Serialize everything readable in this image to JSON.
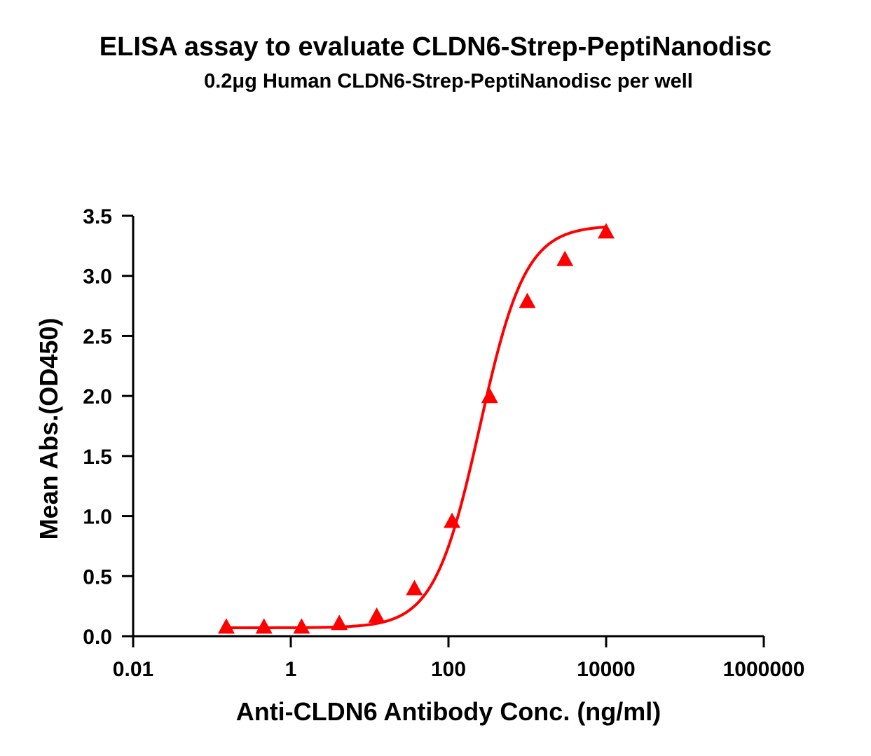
{
  "chart_data": {
    "type": "scatter",
    "title": "ELISA assay to evaluate CLDN6-Strep-PeptiNanodisc",
    "subtitle": "0.2μg Human CLDN6-Strep-PeptiNanodisc per well",
    "xlabel": "Anti-CLDN6 Antibody Conc. (ng/ml)",
    "ylabel": "Mean Abs.(OD450)",
    "x_scale": "log",
    "xlim": [
      0.01,
      1000000
    ],
    "ylim": [
      0,
      3.5
    ],
    "x_ticks": [
      0.01,
      1,
      100,
      10000,
      1000000
    ],
    "x_tick_labels": [
      "0.01",
      "1",
      "100",
      "10000",
      "1000000"
    ],
    "y_ticks": [
      0.0,
      0.5,
      1.0,
      1.5,
      2.0,
      2.5,
      3.0,
      3.5
    ],
    "y_tick_labels": [
      "0.0",
      "0.5",
      "1.0",
      "1.5",
      "2.0",
      "2.5",
      "3.0",
      "3.5"
    ],
    "grid": false,
    "series": [
      {
        "marker": "triangle",
        "color": "#ff0000",
        "x": [
          0.152,
          0.457,
          1.37,
          4.12,
          12.3,
          37.0,
          111,
          333,
          1000,
          3000,
          10000
        ],
        "y": [
          0.07,
          0.07,
          0.07,
          0.1,
          0.16,
          0.39,
          0.95,
          1.99,
          2.78,
          3.13,
          3.36
        ]
      }
    ],
    "fit_curve": {
      "model": "4PL",
      "color": "#ff0000",
      "bottom": 0.07,
      "top": 3.42,
      "ec50": 250,
      "hill": 1.5,
      "x_range": [
        0.152,
        10000
      ]
    }
  }
}
